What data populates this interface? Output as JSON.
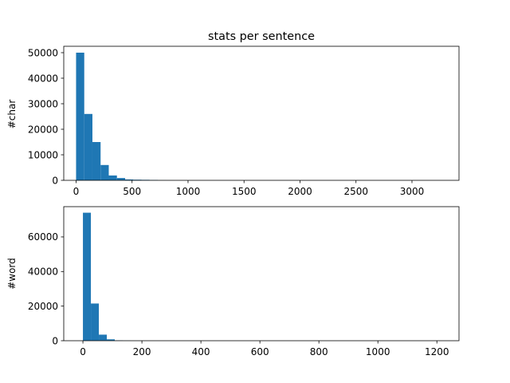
{
  "figure": {
    "title": "stats per sentence"
  },
  "chart_data": [
    {
      "type": "bar",
      "subtype": "histogram",
      "title": "stats per sentence",
      "xlabel": "",
      "ylabel": "#char",
      "bar_color": "#1f77b4",
      "bin_width": 73,
      "bins": [
        {
          "x0": 0,
          "count": 50000
        },
        {
          "x0": 73,
          "count": 26000
        },
        {
          "x0": 146,
          "count": 15000
        },
        {
          "x0": 219,
          "count": 6000
        },
        {
          "x0": 292,
          "count": 1900
        },
        {
          "x0": 365,
          "count": 900
        },
        {
          "x0": 438,
          "count": 350
        },
        {
          "x0": 511,
          "count": 250
        },
        {
          "x0": 584,
          "count": 200
        },
        {
          "x0": 657,
          "count": 150
        },
        {
          "x0": 730,
          "count": 40
        },
        {
          "x0": 803,
          "count": 20
        }
      ],
      "xlim": [
        -110,
        3420
      ],
      "ylim": [
        0,
        52500
      ],
      "xticks": [
        0,
        500,
        1000,
        1500,
        2000,
        2500,
        3000
      ],
      "yticks": [
        0,
        10000,
        20000,
        30000,
        40000,
        50000
      ]
    },
    {
      "type": "bar",
      "subtype": "histogram",
      "title": "",
      "xlabel": "",
      "ylabel": "#word",
      "bar_color": "#1f77b4",
      "bin_width": 27,
      "bins": [
        {
          "x0": 0,
          "count": 74000
        },
        {
          "x0": 27,
          "count": 21500
        },
        {
          "x0": 54,
          "count": 3500
        },
        {
          "x0": 81,
          "count": 800
        },
        {
          "x0": 108,
          "count": 150
        },
        {
          "x0": 135,
          "count": 50
        }
      ],
      "xlim": [
        -65,
        1275
      ],
      "ylim": [
        0,
        77500
      ],
      "xticks": [
        0,
        200,
        400,
        600,
        800,
        1000,
        1200
      ],
      "yticks": [
        0,
        20000,
        40000,
        60000
      ]
    }
  ]
}
